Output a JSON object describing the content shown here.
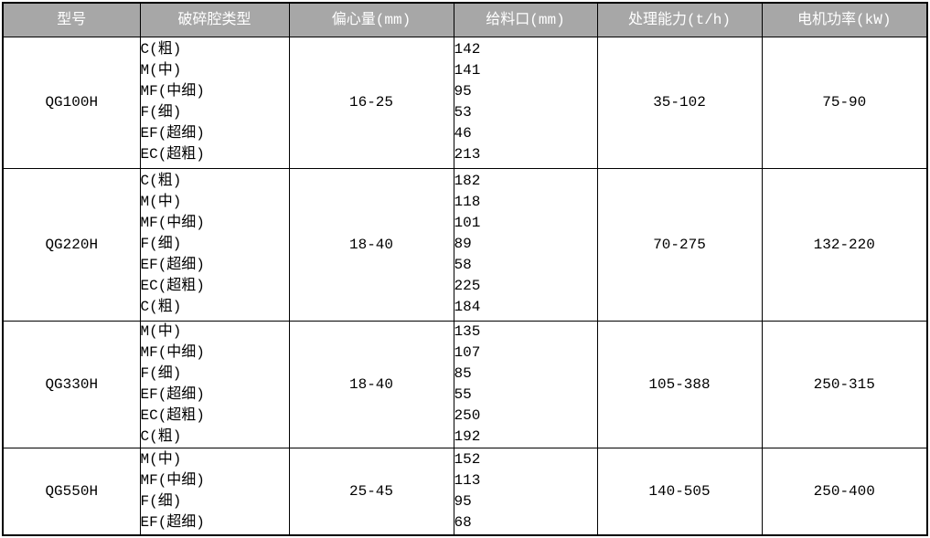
{
  "table": {
    "headers": {
      "model": "型号",
      "chamber_type": "破碎腔类型",
      "eccentricity": "偏心量(mm)",
      "feed_opening": "给料口(mm)",
      "capacity": "处理能力(t/h)",
      "motor_power": "电机功率(kW)"
    },
    "rows": [
      {
        "model": "QG100H",
        "chamber_types": [
          "C(粗)",
          "M(中)",
          "MF(中细)",
          "F(细)",
          "EF(超细)",
          "EC(超粗)"
        ],
        "eccentricity": "16-25",
        "feed_openings": [
          "142",
          "141",
          "95",
          "53",
          "46",
          "213"
        ],
        "capacity": "35-102",
        "motor_power": "75-90"
      },
      {
        "model": "QG220H",
        "chamber_types": [
          "C(粗)",
          "M(中)",
          "MF(中细)",
          "F(细)",
          "EF(超细)",
          "EC(超粗)",
          "C(粗)"
        ],
        "eccentricity": "18-40",
        "feed_openings": [
          "182",
          "118",
          "101",
          "89",
          "58",
          "225",
          "184"
        ],
        "capacity": "70-275",
        "motor_power": "132-220"
      },
      {
        "model": "QG330H",
        "chamber_types": [
          "M(中)",
          "MF(中细)",
          "F(细)",
          "EF(超细)",
          "EC(超粗)",
          "C(粗)"
        ],
        "eccentricity": "18-40",
        "feed_openings": [
          "135",
          "107",
          "85",
          "55",
          "250",
          "192"
        ],
        "capacity": "105-388",
        "motor_power": "250-315"
      },
      {
        "model": "QG550H",
        "chamber_types": [
          "M(中)",
          "MF(中细)",
          "F(细)",
          "EF(超细)"
        ],
        "eccentricity": "25-45",
        "feed_openings": [
          "152",
          "113",
          "95",
          "68"
        ],
        "capacity": "140-505",
        "motor_power": "250-400"
      }
    ]
  },
  "colors": {
    "header_bg": "#a7a7a7",
    "header_text": "#ffffff",
    "border": "#000000",
    "body_text": "#000000",
    "page_bg": "#ffffff"
  }
}
